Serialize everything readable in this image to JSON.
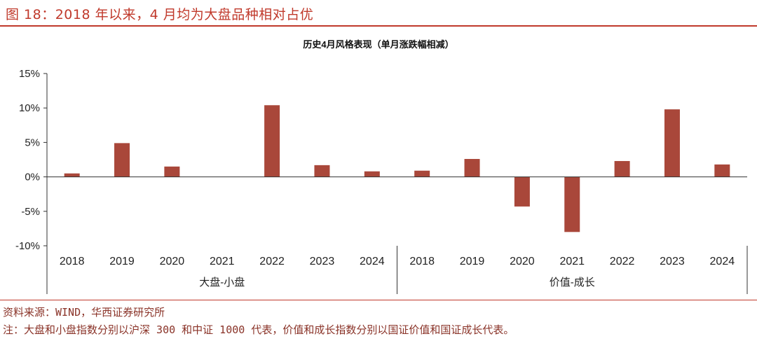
{
  "header": {
    "title": "图 18：2018 年以来，4 月均为大盘品种相对占优"
  },
  "footer": {
    "source": "资料来源：WIND，华西证券研究所",
    "note": "注：大盘和小盘指数分别以沪深 300 和中证 1000 代表，价值和成长指数分别以国证价值和国证成长代表。"
  },
  "colors": {
    "accent": "#c0392b",
    "bar": "#a9473a",
    "axis": "#333333"
  },
  "chart_data": {
    "type": "bar",
    "title": "历史4月风格表现（单月涨跌幅相减）",
    "y_ticks": [
      "15%",
      "10%",
      "5%",
      "0%",
      "-5%",
      "-10%"
    ],
    "ylim": [
      -10,
      15
    ],
    "groups": [
      {
        "name": "大盘-小盘",
        "categories": [
          "2018",
          "2019",
          "2020",
          "2021",
          "2022",
          "2023",
          "2024"
        ],
        "values": [
          0.5,
          4.9,
          1.5,
          0.0,
          10.4,
          1.7,
          0.8
        ]
      },
      {
        "name": "价值-成长",
        "categories": [
          "2018",
          "2019",
          "2020",
          "2021",
          "2022",
          "2023",
          "2024"
        ],
        "values": [
          0.9,
          2.6,
          -4.3,
          -8.0,
          2.3,
          9.8,
          1.8
        ]
      }
    ]
  }
}
